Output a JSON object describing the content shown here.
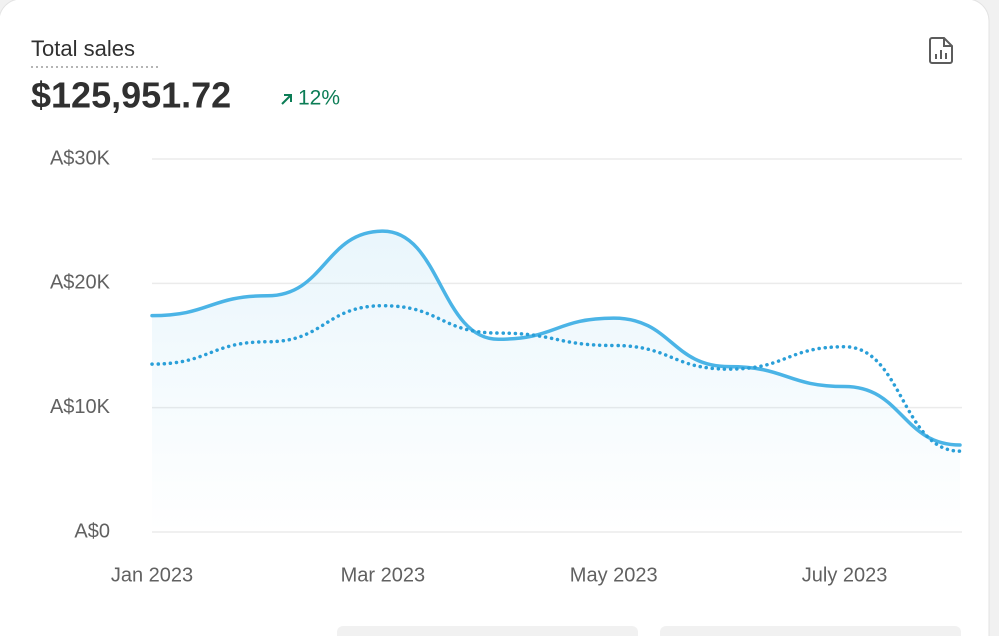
{
  "chart_data": {
    "type": "line",
    "title": "Total sales",
    "subtitle": "$125,951.72",
    "annotation": "12%",
    "categories": [
      "Jan 2023",
      null,
      "Mar 2023",
      null,
      "May 2023",
      null,
      "July 2023",
      null
    ],
    "series": [
      {
        "color": "#4bb4e6",
        "style": "solid",
        "values": [
          17400,
          19000,
          24200,
          15500,
          17200,
          13300,
          11700,
          7000
        ]
      },
      {
        "color": "#2a9fd8",
        "style": "dotted",
        "values": [
          13500,
          15300,
          18200,
          16000,
          15000,
          13100,
          14900,
          6500
        ]
      }
    ],
    "ylim": [
      0,
      30000
    ],
    "yticks": [
      {
        "value": 0,
        "label": "A$0"
      },
      {
        "value": 10000,
        "label": "A$10K"
      },
      {
        "value": 20000,
        "label": "A$20K"
      },
      {
        "value": 30000,
        "label": "A$30K"
      }
    ],
    "grid": true
  }
}
